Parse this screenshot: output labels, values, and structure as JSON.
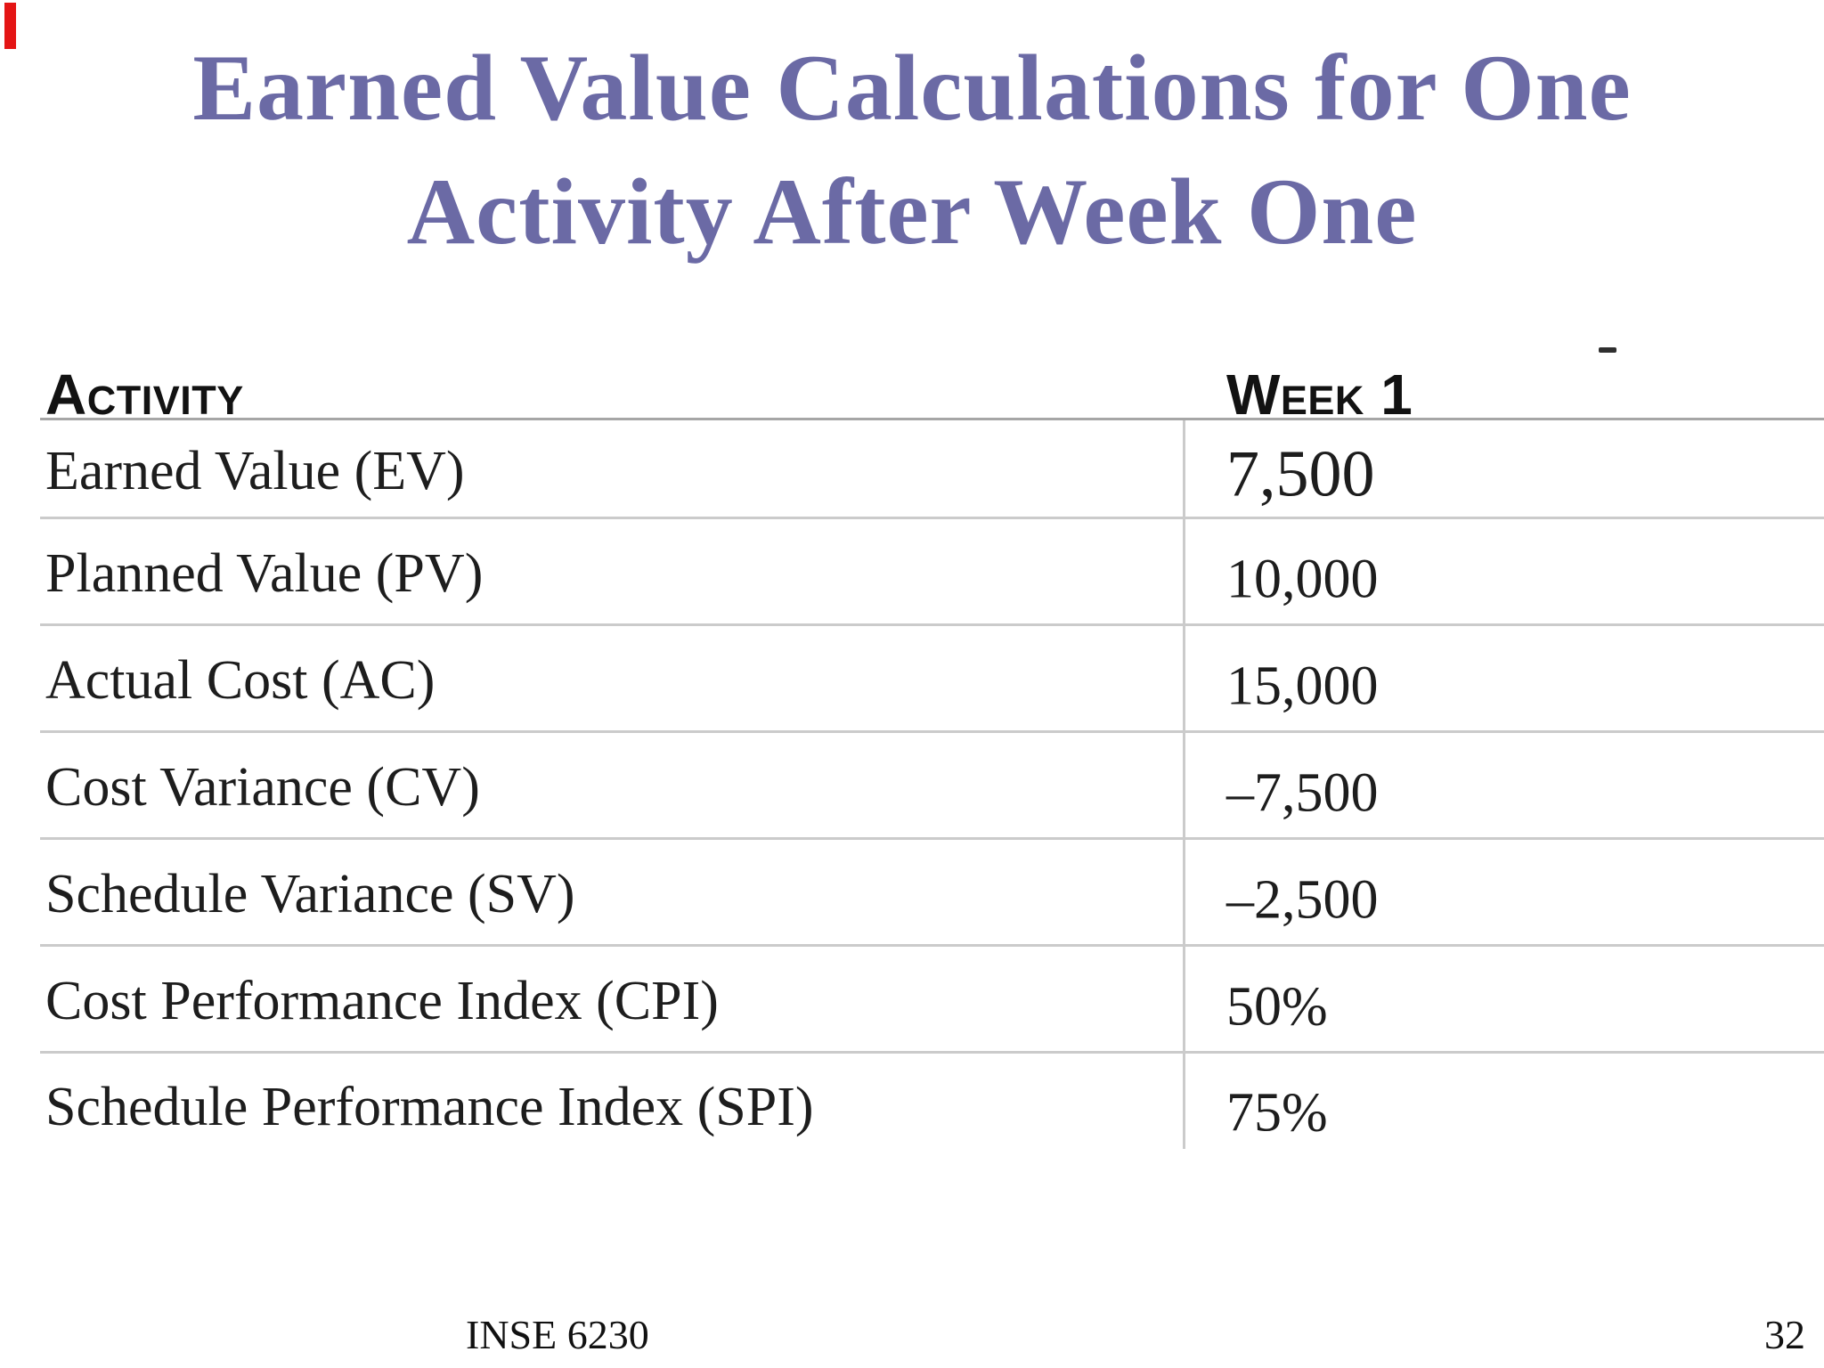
{
  "slide": {
    "title_line1": "Earned Value Calculations for One",
    "title_line2": "Activity After Week One"
  },
  "table": {
    "header": {
      "col1": "Activity",
      "col2": "Week 1"
    },
    "rows": [
      {
        "label": "Earned Value (EV)",
        "value": "7,500"
      },
      {
        "label": "Planned Value (PV)",
        "value": "10,000"
      },
      {
        "label": "Actual Cost (AC)",
        "value": "15,000"
      },
      {
        "label": "Cost Variance (CV)",
        "value": "–7,500"
      },
      {
        "label": "Schedule Variance (SV)",
        "value": "–2,500"
      },
      {
        "label": "Cost Performance Index (CPI)",
        "value": "50%"
      },
      {
        "label": "Schedule Performance Index (SPI)",
        "value": "75%"
      }
    ]
  },
  "footer": {
    "course": "INSE 6230",
    "page": "32"
  },
  "colors": {
    "accent_title": "#6b6aa5",
    "text": "#1d1d1d",
    "line": "#cbcbcb",
    "header_line": "#a6a6a6",
    "red_marker": "#e41515"
  }
}
